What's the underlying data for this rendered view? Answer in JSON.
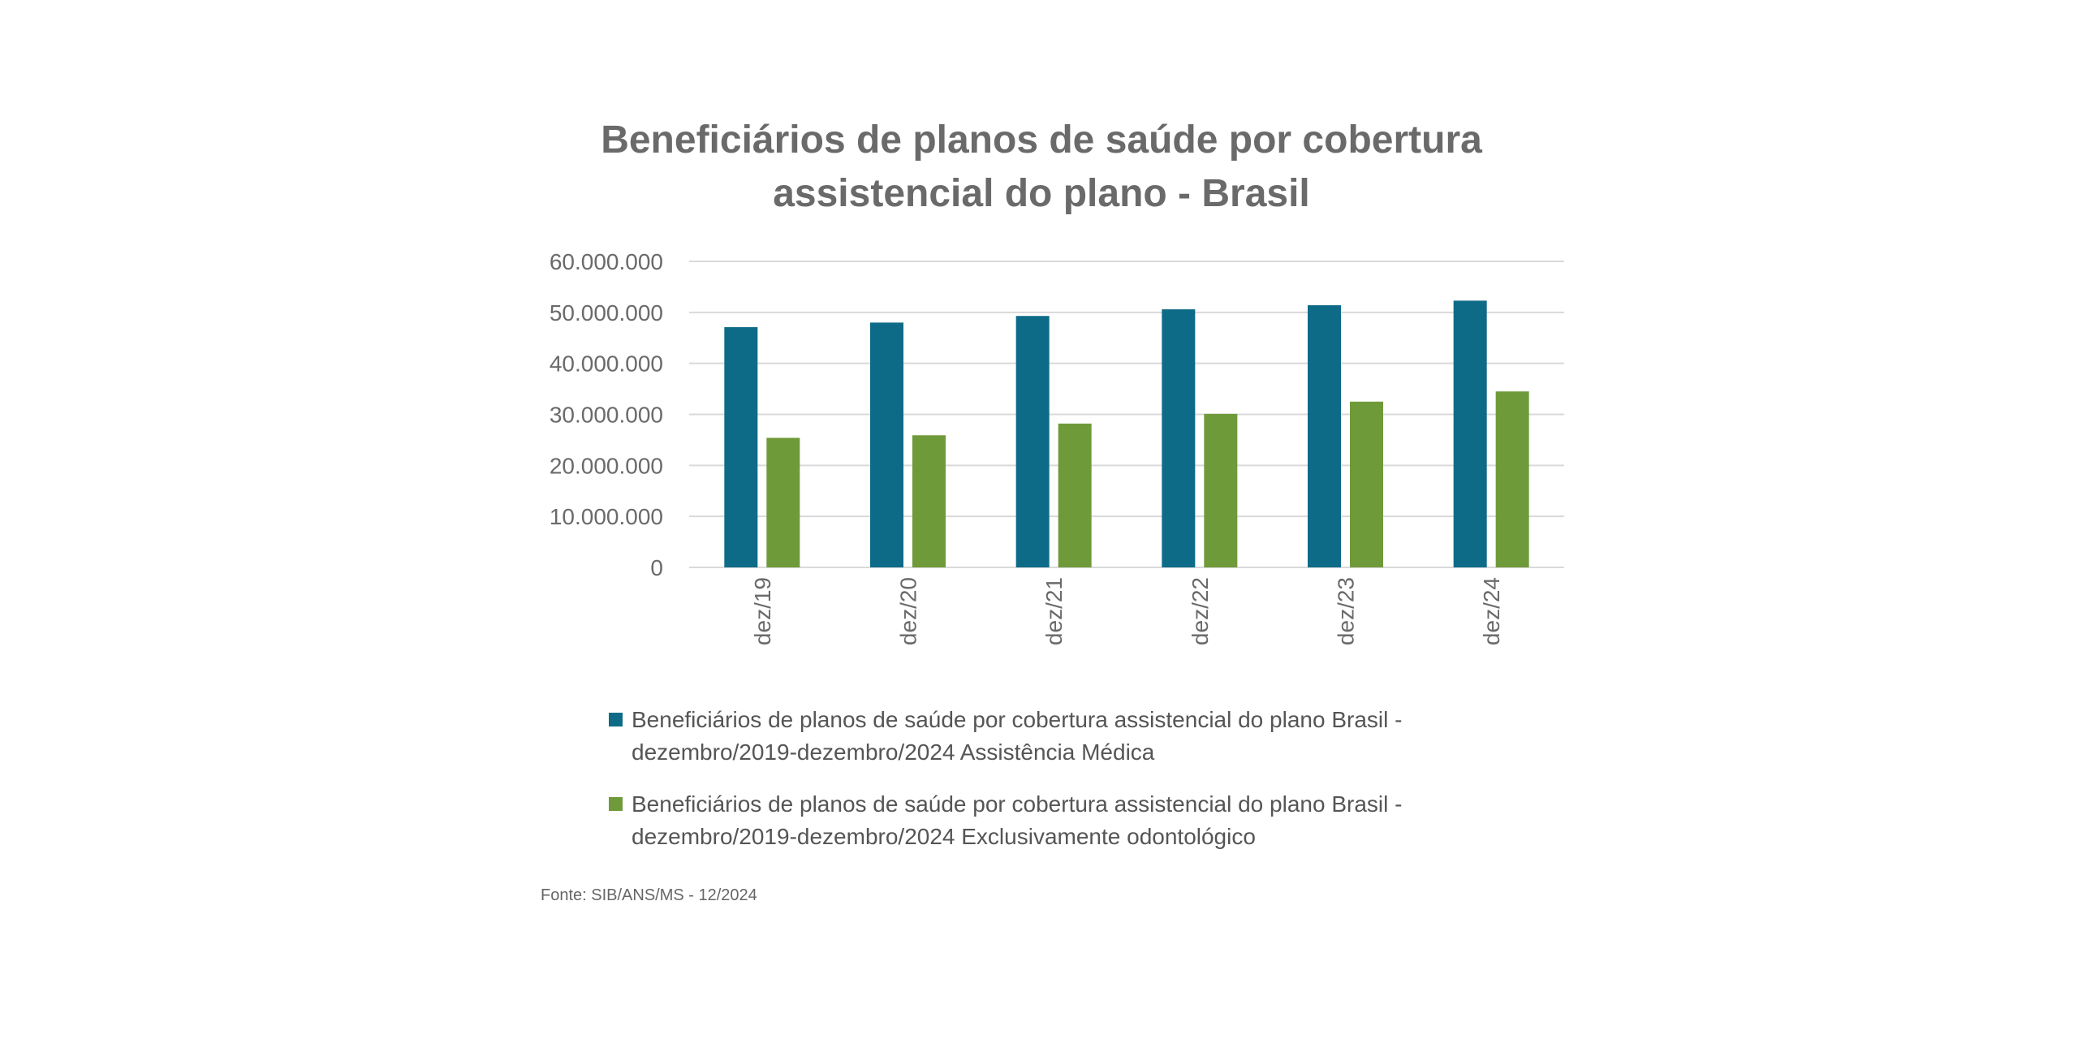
{
  "chart_data": {
    "type": "bar",
    "title_lines": [
      "Beneficiários de planos de saúde por cobertura",
      "assistencial do plano - Brasil"
    ],
    "categories": [
      "dez/19",
      "dez/20",
      "dez/21",
      "dez/22",
      "dez/23",
      "dez/24"
    ],
    "series": [
      {
        "name_lines": [
          "Beneficiários de planos de saúde por cobertura assistencial do plano Brasil -",
          "dezembro/2019-dezembro/2024 Assistência Médica"
        ],
        "color": "#0e6b87",
        "values": [
          47100000,
          48000000,
          49300000,
          50600000,
          51400000,
          52300000
        ]
      },
      {
        "name_lines": [
          "Beneficiários de planos de saúde por cobertura assistencial do plano Brasil -",
          "dezembro/2019-dezembro/2024 Exclusivamente odontológico"
        ],
        "color": "#6f9a3a",
        "values": [
          25400000,
          25900000,
          28200000,
          30100000,
          32500000,
          34500000
        ]
      }
    ],
    "yticks": [
      "0",
      "10.000.000",
      "20.000.000",
      "30.000.000",
      "40.000.000",
      "50.000.000",
      "60.000.000"
    ],
    "ytick_values": [
      0,
      10000000,
      20000000,
      30000000,
      40000000,
      50000000,
      60000000
    ],
    "ylim": [
      0,
      60000000
    ],
    "grid": true,
    "legend": "bottom",
    "xlabel": "",
    "ylabel": ""
  },
  "source": "Fonte: SIB/ANS/MS - 12/2024"
}
